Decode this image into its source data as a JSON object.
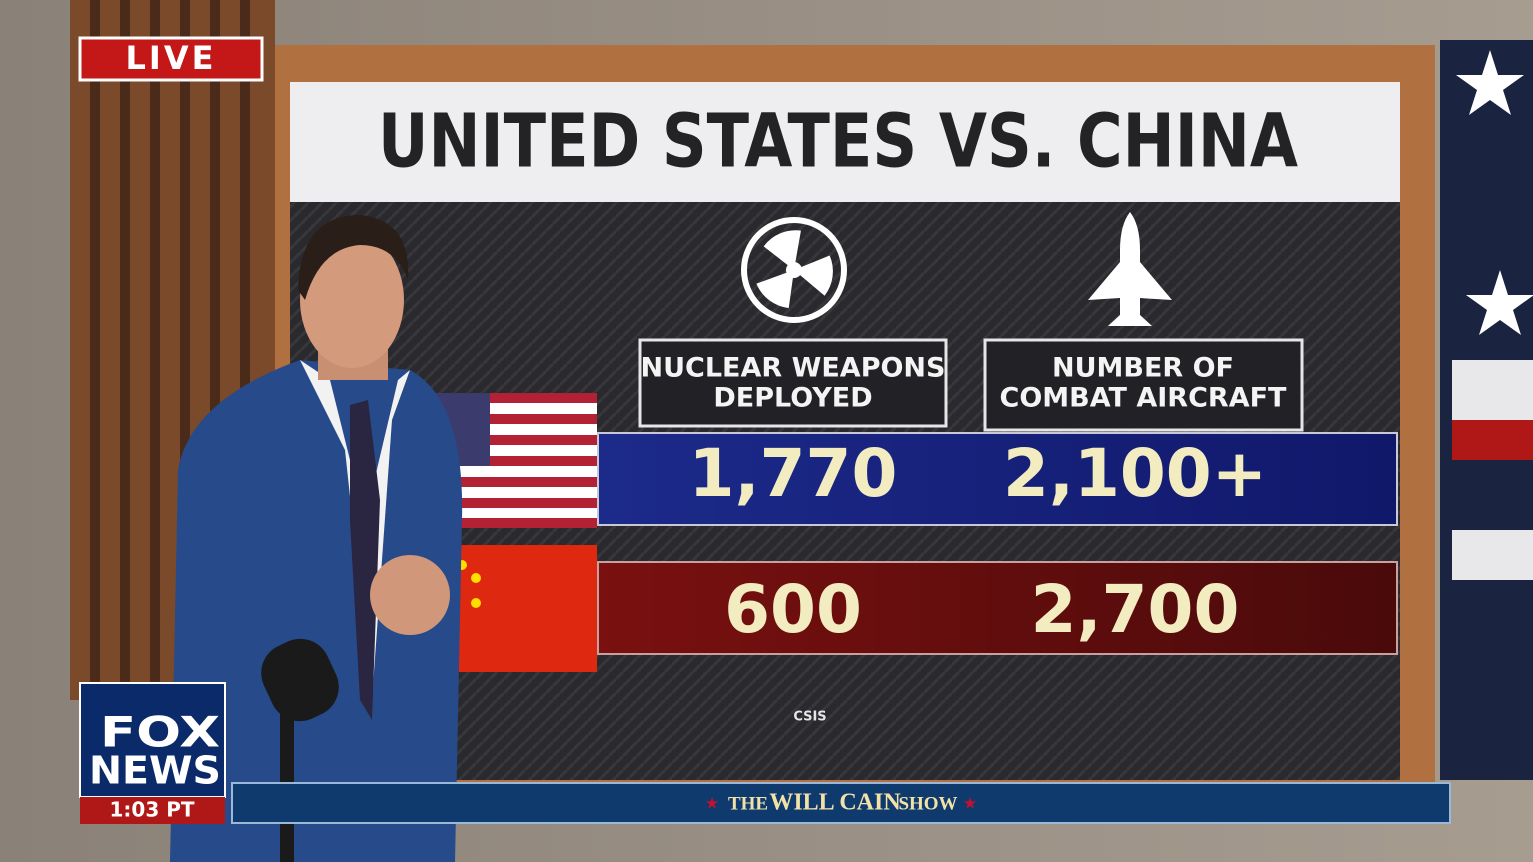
{
  "live_badge": "LIVE",
  "graphic": {
    "title": "UNITED STATES VS. CHINA",
    "columns": [
      [
        "NUCLEAR WEAPONS",
        "DEPLOYED"
      ],
      [
        "NUMBER OF",
        "COMBAT AIRCRAFT"
      ]
    ],
    "rows": [
      [
        "1,770",
        "2,100+"
      ],
      [
        "600",
        "2,700"
      ]
    ],
    "source": "CSIS"
  },
  "network": {
    "logo": [
      "FOX",
      "NEWS"
    ],
    "time": "1:03 PT"
  },
  "show": {
    "prefix": "THE",
    "host": "WILL CAIN",
    "suffix": "SHOW"
  }
}
